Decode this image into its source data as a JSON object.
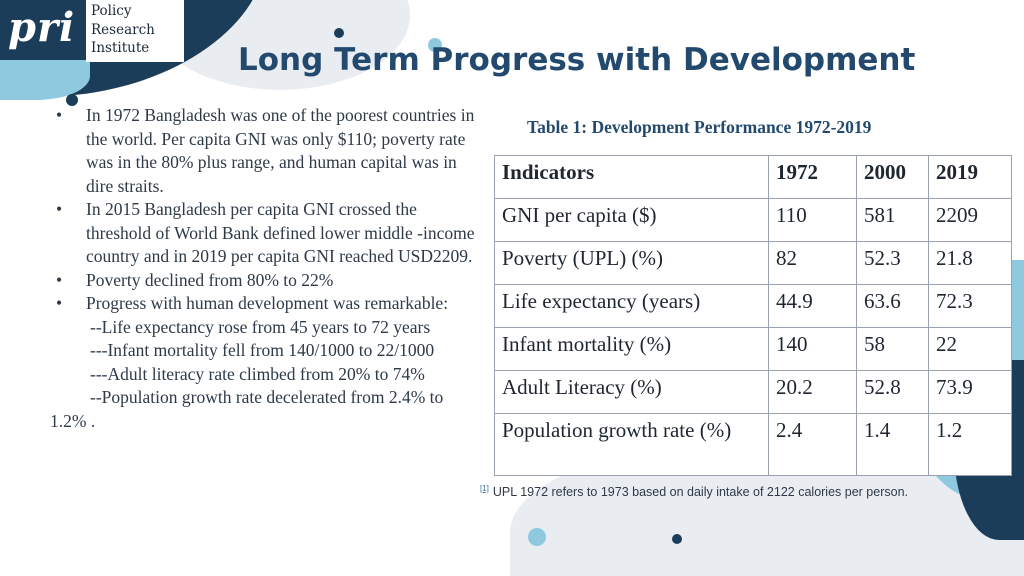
{
  "brand": {
    "mark": "pri",
    "lines": [
      "Policy",
      "Research",
      "Institute"
    ],
    "colors": {
      "navy": "#1c3d5a",
      "light_blue": "#8fc9df",
      "title_blue": "#234a6e",
      "grey_blob": "#e9edf1"
    }
  },
  "title": "Long Term Progress with Development",
  "bullets": [
    "In 1972  Bangladesh was one of the poorest countries in the world. Per capita GNI was only $110; poverty rate was in the 80% plus range, and human capital was in dire straits.",
    "In 2015 Bangladesh per capita GNI crossed the threshold of World Bank defined lower middle -income country and in 2019 per capita GNI reached USD2209.",
    "Poverty declined from 80% to 22%",
    "Progress with human development was remarkable:"
  ],
  "sub_points": [
    "--Life expectancy rose from 45 years to 72 years",
    "---Infant mortality fell from 140/1000 to 22/1000",
    "---Adult literacy rate climbed from 20% to 74%",
    "--Population growth rate decelerated from 2.4% to 1.2% ."
  ],
  "table": {
    "caption": "Table 1: Development Performance 1972-2019",
    "headers": [
      "Indicators",
      "1972",
      "2000",
      "2019"
    ],
    "rows": [
      [
        "GNI per capita ($)",
        "110",
        "581",
        "2209"
      ],
      [
        "Poverty (UPL) (%)",
        "82",
        "52.3",
        "21.8"
      ],
      [
        "Life expectancy (years)",
        "44.9",
        "63.6",
        "72.3"
      ],
      [
        "Infant mortality (%)",
        "140",
        "58",
        "22"
      ],
      [
        "Adult Literacy (%)",
        "20.2",
        "52.8",
        "73.9"
      ],
      [
        "Population growth rate (%)",
        "2.4",
        "1.4",
        "1.2"
      ]
    ]
  },
  "footnote": {
    "marker": "[1]",
    "text": "UPL 1972 refers to 1973 based on daily intake of 2122 calories per person."
  }
}
